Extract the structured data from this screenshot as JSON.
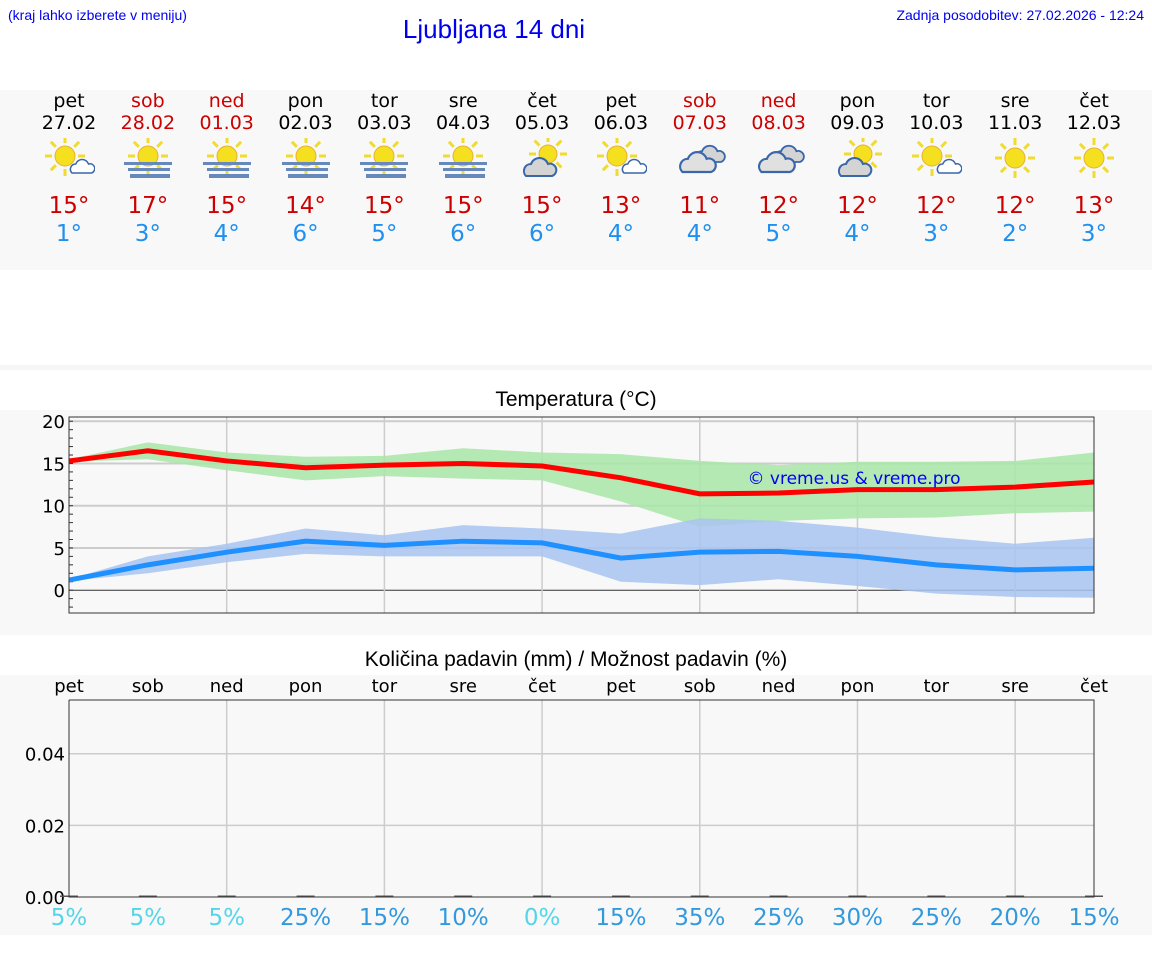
{
  "header": {
    "hint": "(kraj lahko izberete v meniju)",
    "title": "Ljubljana 14 dni",
    "updated": "Zadnja posodobitev: 27.02.2026 - 12:24"
  },
  "days": [
    {
      "name": "pet",
      "date": "27.02",
      "weekend": false,
      "icon": "sun-small-cloud",
      "max": "15°",
      "min": "1°"
    },
    {
      "name": "sob",
      "date": "28.02",
      "weekend": true,
      "icon": "sun-fog",
      "max": "17°",
      "min": "3°"
    },
    {
      "name": "ned",
      "date": "01.03",
      "weekend": true,
      "icon": "sun-fog",
      "max": "15°",
      "min": "4°"
    },
    {
      "name": "pon",
      "date": "02.03",
      "weekend": false,
      "icon": "sun-fog",
      "max": "14°",
      "min": "6°"
    },
    {
      "name": "tor",
      "date": "03.03",
      "weekend": false,
      "icon": "sun-fog",
      "max": "15°",
      "min": "5°"
    },
    {
      "name": "sre",
      "date": "04.03",
      "weekend": false,
      "icon": "sun-fog",
      "max": "15°",
      "min": "6°"
    },
    {
      "name": "čet",
      "date": "05.03",
      "weekend": false,
      "icon": "cloud-sun",
      "max": "15°",
      "min": "6°"
    },
    {
      "name": "pet",
      "date": "06.03",
      "weekend": false,
      "icon": "sun-small-cloud",
      "max": "13°",
      "min": "4°"
    },
    {
      "name": "sob",
      "date": "07.03",
      "weekend": true,
      "icon": "clouds",
      "max": "11°",
      "min": "4°"
    },
    {
      "name": "ned",
      "date": "08.03",
      "weekend": true,
      "icon": "clouds",
      "max": "12°",
      "min": "5°"
    },
    {
      "name": "pon",
      "date": "09.03",
      "weekend": false,
      "icon": "cloud-sun",
      "max": "12°",
      "min": "4°"
    },
    {
      "name": "tor",
      "date": "10.03",
      "weekend": false,
      "icon": "sun-small-cloud",
      "max": "12°",
      "min": "3°"
    },
    {
      "name": "sre",
      "date": "11.03",
      "weekend": false,
      "icon": "sun",
      "max": "12°",
      "min": "2°"
    },
    {
      "name": "čet",
      "date": "12.03",
      "weekend": false,
      "icon": "sun",
      "max": "13°",
      "min": "3°"
    }
  ],
  "colors": {
    "max": "#ff0000",
    "min": "#1e90ff",
    "max_band": "#a8e6a8",
    "min_band": "#a8c4f0",
    "pct_low": "#55d5ea",
    "pct_high": "#3399dd"
  },
  "chart_data": [
    {
      "type": "line",
      "title": "Temperatura (°C)",
      "ylim": [
        -2.7,
        20.5
      ],
      "yticks": [
        "0",
        "5",
        "10",
        "15",
        "20"
      ],
      "watermark": "© vreme.us & vreme.pro",
      "series": [
        {
          "name": "max",
          "values": [
            15.3,
            16.5,
            15.3,
            14.5,
            14.8,
            15.0,
            14.7,
            13.3,
            11.4,
            11.5,
            11.9,
            11.9,
            12.2,
            12.8
          ],
          "band_high": [
            15.5,
            17.5,
            16.3,
            15.8,
            15.9,
            16.8,
            16.3,
            16.1,
            15.3,
            14.8,
            15.2,
            15.2,
            15.3,
            16.3
          ],
          "band_low": [
            15.2,
            15.5,
            14.2,
            13.0,
            13.5,
            13.2,
            13.0,
            10.5,
            7.5,
            8.2,
            8.5,
            8.6,
            9.1,
            9.3
          ]
        },
        {
          "name": "min",
          "values": [
            1.2,
            3.0,
            4.5,
            5.8,
            5.3,
            5.8,
            5.6,
            3.8,
            4.5,
            4.6,
            4.0,
            3.0,
            2.4,
            2.6
          ],
          "band_high": [
            1.3,
            4.0,
            5.5,
            7.3,
            6.5,
            7.7,
            7.3,
            6.7,
            8.5,
            8.2,
            7.4,
            6.3,
            5.5,
            6.2
          ],
          "band_low": [
            1.1,
            2.0,
            3.3,
            4.3,
            4.0,
            4.0,
            4.0,
            1.0,
            0.6,
            1.3,
            0.5,
            -0.4,
            -0.8,
            -0.9
          ]
        }
      ]
    },
    {
      "type": "bar",
      "title": "Količina padavin (mm) / Možnost padavin (%)",
      "ylim": [
        0,
        0.055
      ],
      "yticks": [
        "0.00",
        "0.02",
        "0.04"
      ],
      "categories": [
        "pet",
        "sob",
        "ned",
        "pon",
        "tor",
        "sre",
        "čet",
        "pet",
        "sob",
        "ned",
        "pon",
        "tor",
        "sre",
        "čet"
      ],
      "values": [
        0,
        0,
        0,
        0,
        0,
        0,
        0,
        0,
        0,
        0,
        0,
        0,
        0,
        0
      ],
      "probability": [
        "5%",
        "5%",
        "5%",
        "25%",
        "15%",
        "10%",
        "0%",
        "15%",
        "35%",
        "25%",
        "30%",
        "25%",
        "20%",
        "15%"
      ]
    }
  ]
}
